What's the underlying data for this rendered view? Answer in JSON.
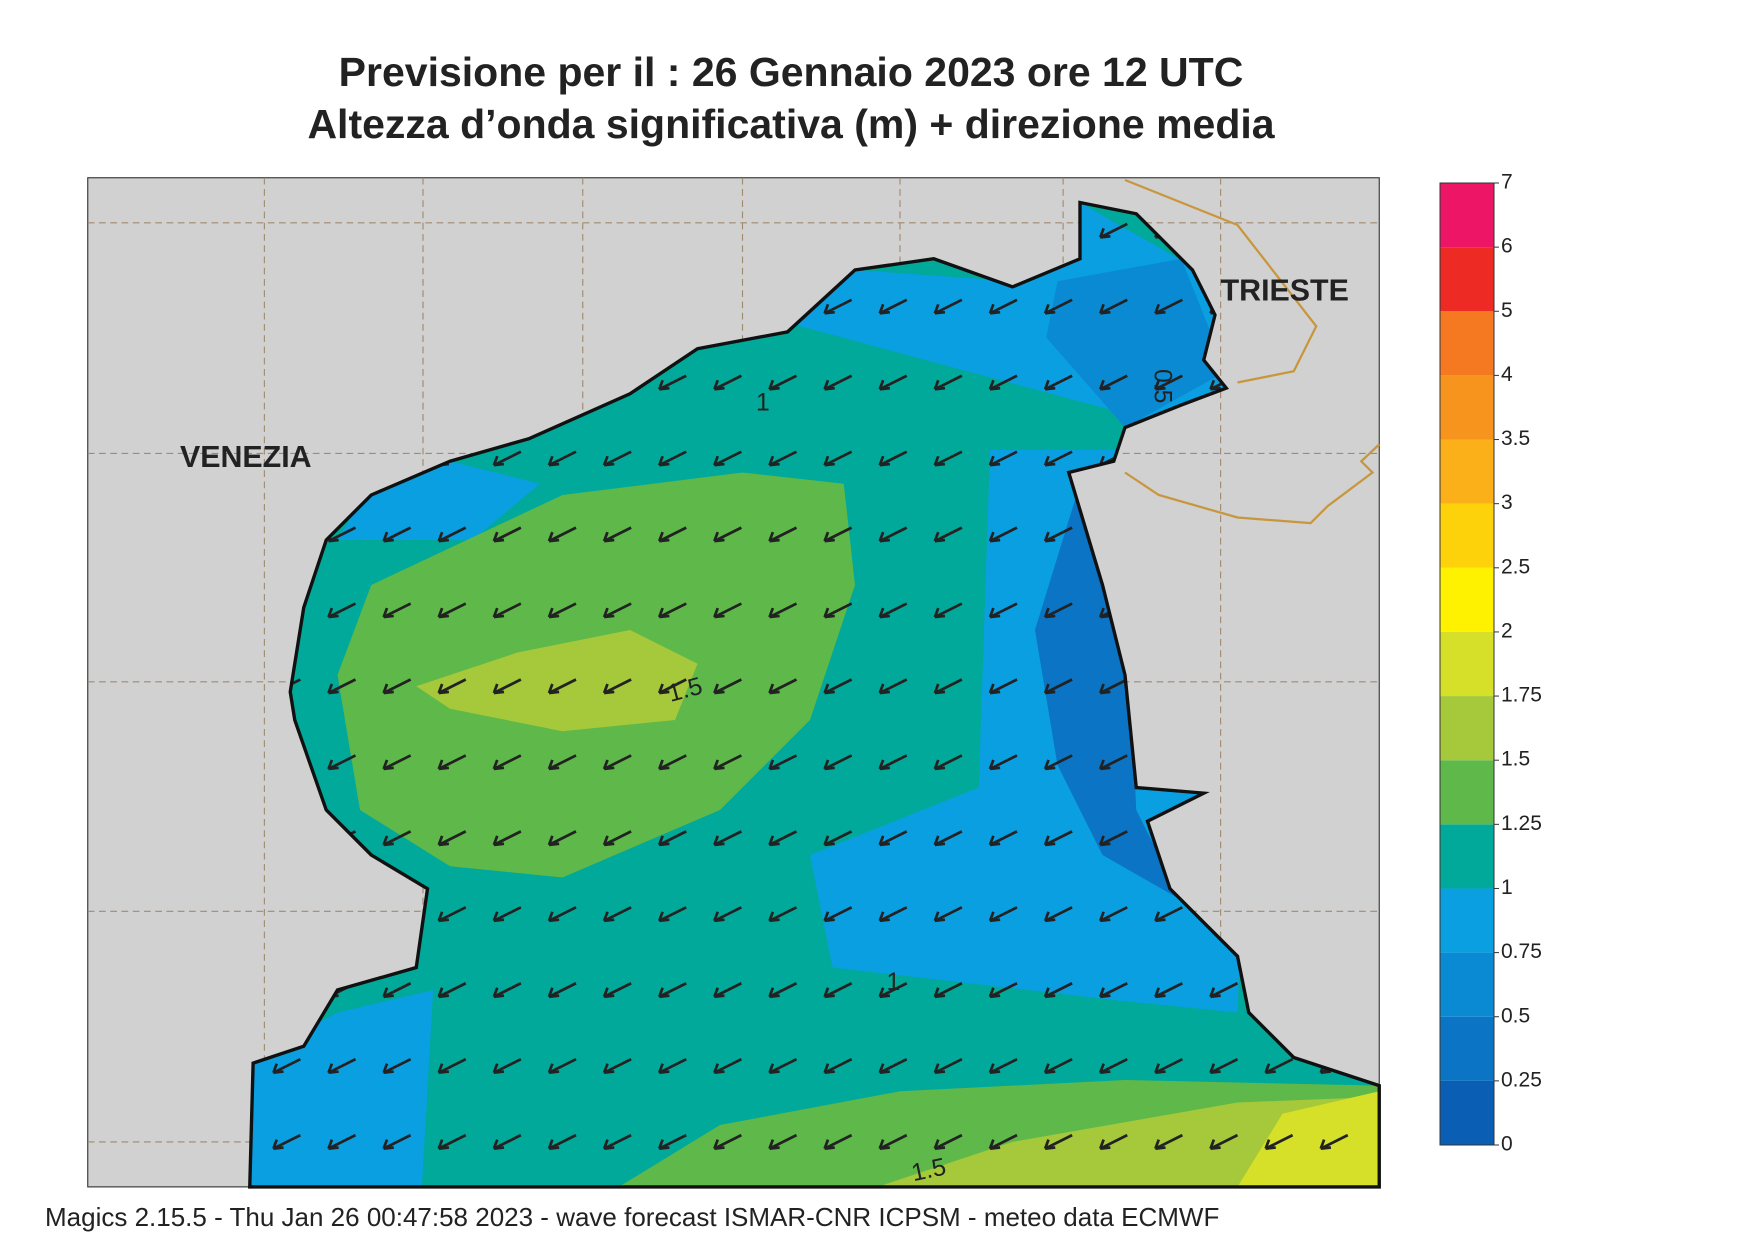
{
  "title": "Previsione per il  :  26  Gennaio  2023   ore 12 UTC",
  "subtitle": "Altezza d’onda significativa (m) + direzione media",
  "footer": "Magics 2.15.5 - Thu Jan 26 00:47:58 2023 - wave forecast  ISMAR-CNR  ICPSM - meteo data    ECMWF",
  "places": [
    "VENEZIA",
    "TRIESTE"
  ],
  "contour_labels": [
    "1",
    "1.5",
    "0.5",
    "1",
    "1.5"
  ],
  "colorbar": {
    "levels": [
      0,
      0.25,
      0.5,
      0.75,
      1,
      1.25,
      1.5,
      1.75,
      2,
      2.5,
      3,
      3.5,
      4,
      5,
      6,
      7
    ],
    "colors": [
      "#0a5fb4",
      "#0b74c4",
      "#0a8ad2",
      "#0a9fe0",
      "#00a99a",
      "#5fb84a",
      "#a5c93a",
      "#d6e028",
      "#fff200",
      "#fdd20a",
      "#fbb01a",
      "#f7941d",
      "#f47920",
      "#ee2a24",
      "#ed1566"
    ]
  }
}
